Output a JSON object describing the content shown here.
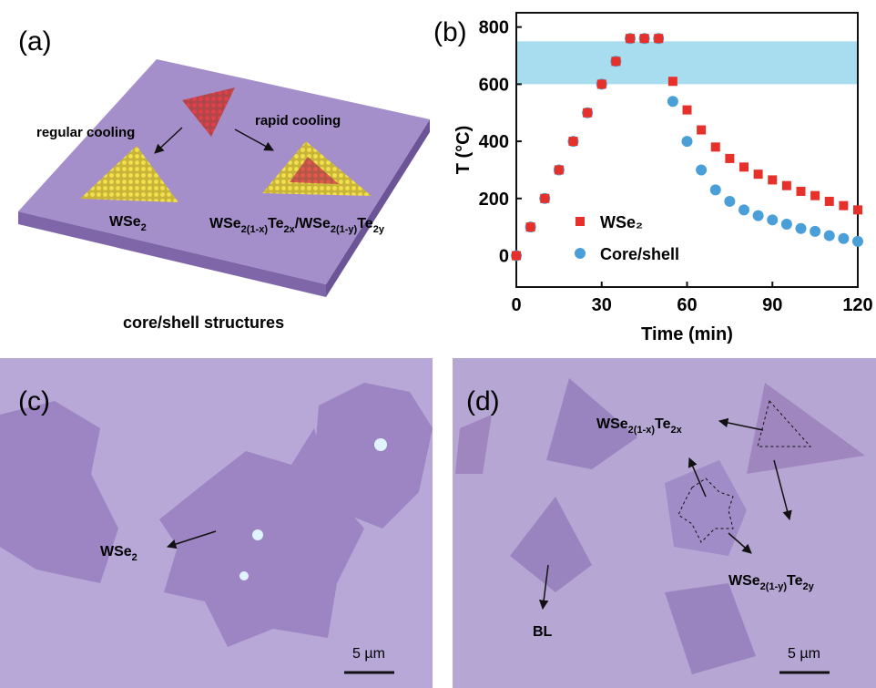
{
  "panels": {
    "a": {
      "label": "(a)",
      "regular": "regular cooling",
      "rapid": "rapid cooling",
      "product_left": [
        "WSe",
        "2"
      ],
      "product_right": [
        "WSe",
        "2(1-x)",
        "Te",
        "2x",
        "/WSe",
        "2(1-y)",
        "Te",
        "2y"
      ],
      "caption": "core/shell structures"
    },
    "c": {
      "label": "(c)",
      "annotation": [
        "WSe",
        "2"
      ],
      "scale_bar": "5 µm"
    },
    "d": {
      "label": "(d)",
      "core": [
        "WSe",
        "2(1-x)",
        "Te",
        "2x"
      ],
      "shell": [
        "WSe",
        "2(1-y)",
        "Te",
        "2y"
      ],
      "bilayer": "BL",
      "scale_bar": "5 µm"
    }
  },
  "chart_data": {
    "type": "scatter",
    "label": "(b)",
    "xlabel": "Time (min)",
    "ylabel": "T (°C)",
    "x": [
      0,
      5,
      10,
      15,
      20,
      25,
      30,
      35,
      40,
      45,
      50,
      55,
      60,
      65,
      70,
      75,
      80,
      85,
      90,
      95,
      100,
      105,
      110,
      115,
      120
    ],
    "series": [
      {
        "name": "Core/shell",
        "color": "#4a9fd8",
        "marker": "circle",
        "values": [
          0,
          100,
          200,
          300,
          400,
          500,
          600,
          680,
          760,
          760,
          760,
          540,
          400,
          300,
          230,
          190,
          160,
          140,
          125,
          110,
          95,
          85,
          70,
          60,
          50
        ]
      },
      {
        "name": "WSe₂",
        "color": "#e8302a",
        "marker": "square",
        "values": [
          0,
          100,
          200,
          300,
          400,
          500,
          600,
          680,
          760,
          760,
          760,
          610,
          510,
          440,
          380,
          340,
          310,
          285,
          265,
          245,
          225,
          210,
          190,
          175,
          160
        ]
      }
    ],
    "legend_order": [
      1,
      0
    ],
    "highlight_range": [
      600,
      750
    ],
    "highlight_color": "#a8dcef",
    "xlim": [
      0,
      120
    ],
    "ylim": [
      -110,
      850
    ],
    "xticks": [
      0,
      30,
      60,
      90,
      120
    ],
    "yticks": [
      0,
      200,
      400,
      600,
      800
    ]
  }
}
